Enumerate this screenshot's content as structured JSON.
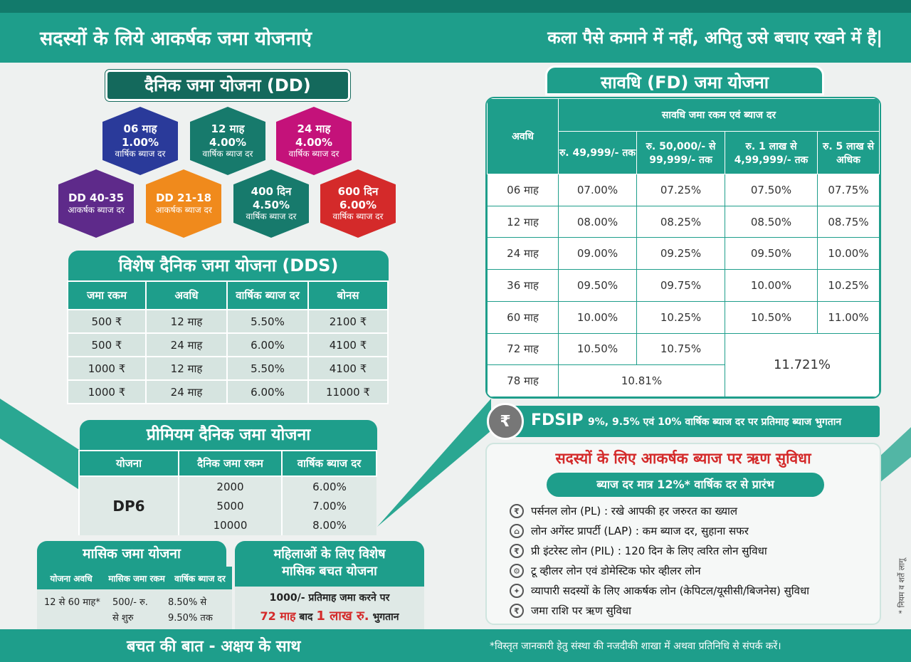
{
  "header": {
    "left_title": "सदस्यों के लिये आकर्षक जमा योजनाएं",
    "right_title": "कला पैसे कमाने में नहीं, अपितु उसे बचाए रखने में है|"
  },
  "dd": {
    "title": "दैनिक जमा योजना (DD)",
    "hexes": [
      {
        "l1": "06 माह",
        "l2": "1.00%",
        "l3": "वार्षिक ब्याज दर",
        "color": "#2a3a9a"
      },
      {
        "l1": "12 माह",
        "l2": "4.00%",
        "l3": "वार्षिक ब्याज दर",
        "color": "#177a6c"
      },
      {
        "l1": "24 माह",
        "l2": "4.00%",
        "l3": "वार्षिक ब्याज दर",
        "color": "#c4127a"
      },
      {
        "l1": "DD 40-35",
        "l2": "",
        "l3": "आकर्षक ब्याज दर",
        "color": "#5e2a8a"
      },
      {
        "l1": "DD 21-18",
        "l2": "",
        "l3": "आकर्षक ब्याज दर",
        "color": "#f08a1c"
      },
      {
        "l1": "400 दिन",
        "l2": "4.50%",
        "l3": "वार्षिक ब्याज दर",
        "color": "#177a6c"
      },
      {
        "l1": "600 दिन",
        "l2": "6.00%",
        "l3": "वार्षिक ब्याज दर",
        "color": "#d42a2a"
      }
    ]
  },
  "dds": {
    "title": "विशेष दैनिक जमा योजना (DDS)",
    "headers": [
      "जमा रकम",
      "अवधि",
      "वार्षिक ब्याज दर",
      "बोनस"
    ],
    "rows": [
      [
        "500 ₹",
        "12 माह",
        "5.50%",
        "2100 ₹"
      ],
      [
        "500 ₹",
        "24 माह",
        "6.00%",
        "4100 ₹"
      ],
      [
        "1000 ₹",
        "12 माह",
        "5.50%",
        "4100 ₹"
      ],
      [
        "1000 ₹",
        "24 माह",
        "6.00%",
        "11000 ₹"
      ]
    ]
  },
  "premium": {
    "title": "प्रीमियम दैनिक जमा योजना",
    "headers": [
      "योजना",
      "दैनिक जमा रकम",
      "वार्षिक ब्याज दर"
    ],
    "plan": "DP6",
    "amounts": [
      "2000",
      "5000",
      "10000"
    ],
    "rates": [
      "6.00%",
      "7.00%",
      "8.00%"
    ]
  },
  "monthly": {
    "title": "मासिक जमा योजना",
    "headers": [
      "योजना अवधि",
      "मासिक जमा रकम",
      "वार्षिक ब्याज दर"
    ],
    "period": "12 से 60 माह*",
    "amount1": "500/- रु.",
    "amount2": "से शुरु",
    "rate1": "8.50% से",
    "rate2": "9.50% तक"
  },
  "women": {
    "title1": "महिलाओं के लिए विशेष",
    "title2": "मासिक बचत योजना",
    "line1": "1000/- प्रतिमाह जमा करने पर",
    "line2a": "72 माह",
    "line2b": "बाद",
    "line2c": "1 लाख रु.",
    "line2d": "भुगतान"
  },
  "fd": {
    "title": "सावधि (FD) जमा योजना",
    "period_header": "अवधि",
    "group_header": "सावधि जमा रकम एवं ब्याज दर",
    "headers": [
      "रु. 49,999/- तक",
      "रु. 50,000/- से 99,999/- तक",
      "रु. 1 लाख से 4,99,999/- तक",
      "रु. 5 लाख से अधिक"
    ],
    "rows": [
      [
        "06 माह",
        "07.00%",
        "07.25%",
        "07.50%",
        "07.75%"
      ],
      [
        "12 माह",
        "08.00%",
        "08.25%",
        "08.50%",
        "08.75%"
      ],
      [
        "24 माह",
        "09.00%",
        "09.25%",
        "09.50%",
        "10.00%"
      ],
      [
        "36 माह",
        "09.50%",
        "09.75%",
        "10.00%",
        "10.25%"
      ],
      [
        "60 माह",
        "10.00%",
        "10.25%",
        "10.50%",
        "11.00%"
      ]
    ],
    "row72": [
      "72 माह",
      "10.50%",
      "10.75%"
    ],
    "row78": [
      "78 माह",
      "10.81%"
    ],
    "merged": "11.721%"
  },
  "fdsip": {
    "label": "FDSIP",
    "text": "9%, 9.5% एवं 10% वार्षिक ब्याज दर पर प्रतिमाह ब्याज भुगतान"
  },
  "loan": {
    "title": "सदस्यों के लिए आकर्षक ब्याज पर ऋण सुविधा",
    "subtitle": "ब्याज दर मात्र 12%* वार्षिक दर से प्रारंभ",
    "items": [
      "पर्सनल लोन (PL) : रखे आपकी हर जरुरत का ख्याल",
      "लोन अगेंस्ट प्रापर्टी (LAP) : कम ब्याज दर, सुहाना सफर",
      "प्री इंटरेस्ट लोन (PIL) : 120 दिन के लिए त्वरित लोन सुविधा",
      "टू व्हीलर लोन एवं डोमेस्टिक फोर व्हीलर लोन",
      "व्यापारी सदस्यों के लिए आकर्षक लोन (केपिटल/यूसीसी/बिजनेस) सुविधा",
      "जमा राशि पर ऋण सुविधा"
    ],
    "icons": [
      "₹",
      "⌂",
      "₹",
      "⚙",
      "✦",
      "₹"
    ],
    "side_note": "* नियम व शर्ते लागू"
  },
  "footer": {
    "left": "बचत की बात - अक्षय के साथ",
    "right": "*विस्तृत जानकारी हेतु संस्था की नजदीकी शाखा में अथवा प्रतिनिधि से संपर्क करें।"
  }
}
